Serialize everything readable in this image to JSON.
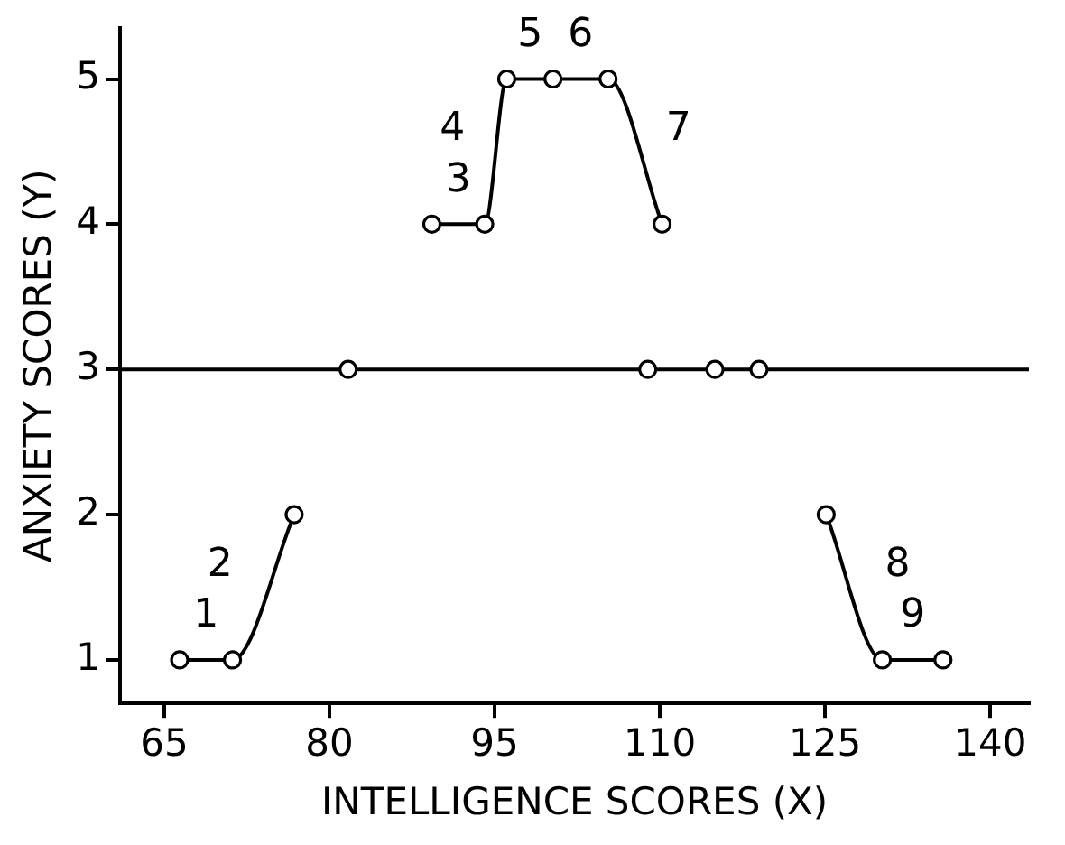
{
  "chart_data": {
    "type": "scatter",
    "xlabel": "INTELLIGENCE SCORES (X)",
    "ylabel": "ANXIETY SCORES (Y)",
    "xlim": [
      61,
      143.5
    ],
    "ylim": [
      0.7,
      5.35
    ],
    "xticks": [
      65,
      80,
      95,
      110,
      125,
      140
    ],
    "yticks": [
      1,
      2,
      3,
      4,
      5
    ],
    "grid": false,
    "legend": false,
    "marker": "circle",
    "series": [
      {
        "type": "line",
        "color": "#000000",
        "x": [
          66.4,
          71.2,
          76.8
        ],
        "values": [
          1,
          1,
          2
        ]
      },
      {
        "type": "line",
        "color": "#000000",
        "x": [
          89.3,
          94.1,
          96.1,
          100.3,
          105.3,
          110.2
        ],
        "values": [
          4,
          4,
          5,
          5,
          5,
          4
        ]
      },
      {
        "type": "line",
        "color": "#000000",
        "x": [
          125.1,
          130.2,
          135.7
        ],
        "values": [
          2,
          1,
          1
        ]
      },
      {
        "color": "#000000",
        "x": [
          81.7,
          108.9,
          115,
          119
        ],
        "values": [
          3,
          3,
          3,
          3
        ]
      }
    ],
    "ref_lines": [
      {
        "axis": "y",
        "value": 3,
        "color": "#000000"
      }
    ],
    "annotations": [
      {
        "text": "1",
        "x": 66.4,
        "y": 1
      },
      {
        "text": "2",
        "x": 71.2,
        "y": 1
      },
      {
        "text": "3",
        "x": 89.3,
        "y": 4
      },
      {
        "text": "4",
        "x": 94.1,
        "y": 4
      },
      {
        "text": "5",
        "x": 96.1,
        "y": 5
      },
      {
        "text": "6",
        "x": 100.3,
        "y": 5
      },
      {
        "text": "7",
        "x": 105.3,
        "y": 5
      },
      {
        "text": "8",
        "x": 125.1,
        "y": 2
      },
      {
        "text": "9",
        "x": 130.2,
        "y": 1
      }
    ]
  }
}
